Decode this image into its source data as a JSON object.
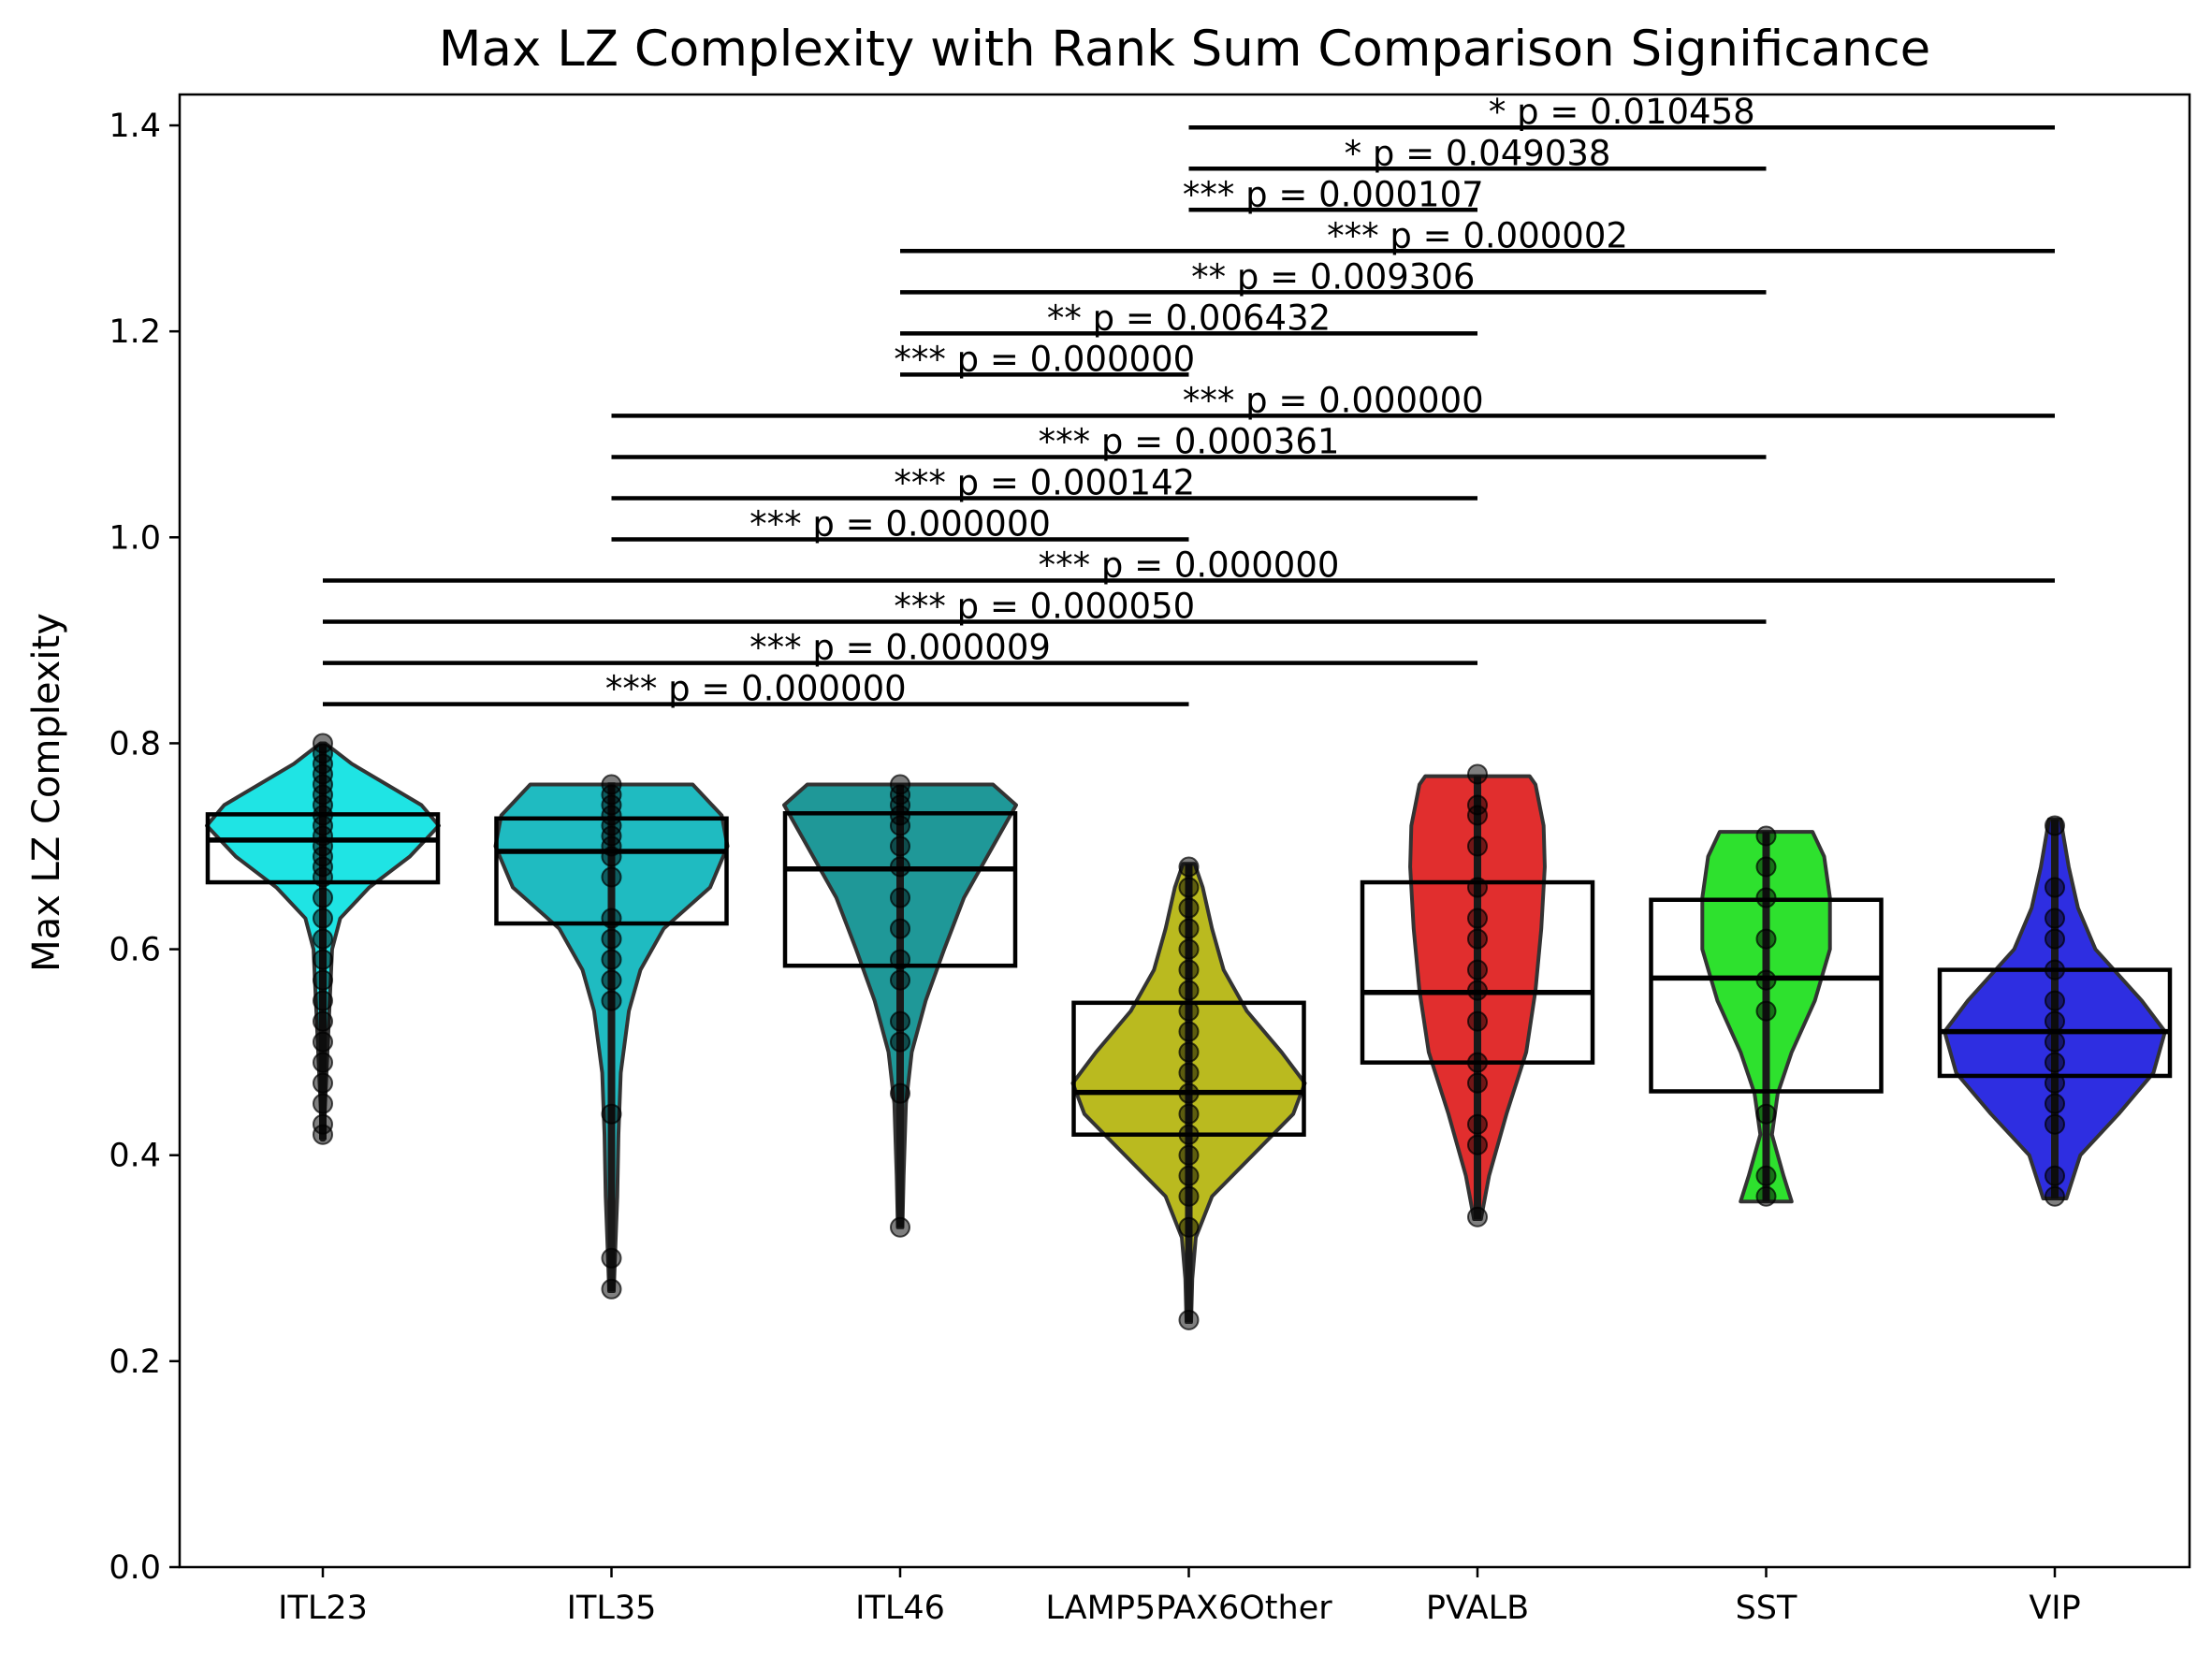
{
  "chart_data": {
    "type": "violin",
    "title": "Max LZ Complexity with Rank Sum Comparison Significance",
    "xlabel": "",
    "ylabel": "Max LZ Complexity",
    "ylim": [
      0.0,
      1.43
    ],
    "yticks": [
      "0.0",
      "0.2",
      "0.4",
      "0.6",
      "0.8",
      "1.0",
      "1.2",
      "1.4"
    ],
    "grid": false,
    "categories": [
      "ITL23",
      "ITL35",
      "ITL46",
      "LAMP5PAX6Other",
      "PVALB",
      "SST",
      "VIP"
    ],
    "groups": [
      {
        "name": "ITL23",
        "color": "#00e0e0",
        "box": {
          "q1": 0.665,
          "median": 0.706,
          "q3": 0.731
        },
        "range": [
          0.415,
          0.8
        ],
        "violin": [
          [
            0.415,
            0.008
          ],
          [
            0.45,
            0.02
          ],
          [
            0.5,
            0.04
          ],
          [
            0.55,
            0.06
          ],
          [
            0.6,
            0.08
          ],
          [
            0.63,
            0.15
          ],
          [
            0.66,
            0.4
          ],
          [
            0.69,
            0.75
          ],
          [
            0.72,
            1.0
          ],
          [
            0.74,
            0.85
          ],
          [
            0.76,
            0.55
          ],
          [
            0.78,
            0.25
          ],
          [
            0.8,
            0.02
          ]
        ],
        "points": [
          0.42,
          0.43,
          0.45,
          0.47,
          0.49,
          0.51,
          0.53,
          0.55,
          0.57,
          0.59,
          0.61,
          0.63,
          0.65,
          0.67,
          0.68,
          0.69,
          0.7,
          0.71,
          0.72,
          0.73,
          0.74,
          0.75,
          0.76,
          0.77,
          0.78,
          0.79,
          0.8
        ]
      },
      {
        "name": "ITL35",
        "color": "#00b2b8",
        "box": {
          "q1": 0.625,
          "median": 0.695,
          "q3": 0.727
        },
        "range": [
          0.268,
          0.762
        ],
        "violin": [
          [
            0.268,
            0.02
          ],
          [
            0.3,
            0.03
          ],
          [
            0.36,
            0.05
          ],
          [
            0.42,
            0.06
          ],
          [
            0.48,
            0.08
          ],
          [
            0.54,
            0.15
          ],
          [
            0.58,
            0.25
          ],
          [
            0.62,
            0.45
          ],
          [
            0.66,
            0.85
          ],
          [
            0.7,
            1.0
          ],
          [
            0.73,
            0.95
          ],
          [
            0.76,
            0.7
          ]
        ],
        "points": [
          0.27,
          0.3,
          0.44,
          0.55,
          0.57,
          0.59,
          0.61,
          0.63,
          0.67,
          0.69,
          0.7,
          0.71,
          0.72,
          0.73,
          0.74,
          0.75,
          0.76
        ]
      },
      {
        "name": "ITL46",
        "color": "#008a8a",
        "box": {
          "q1": 0.584,
          "median": 0.678,
          "q3": 0.732
        },
        "range": [
          0.33,
          0.76
        ],
        "violin": [
          [
            0.33,
            0.02
          ],
          [
            0.38,
            0.03
          ],
          [
            0.45,
            0.05
          ],
          [
            0.5,
            0.1
          ],
          [
            0.55,
            0.22
          ],
          [
            0.6,
            0.38
          ],
          [
            0.65,
            0.55
          ],
          [
            0.7,
            0.8
          ],
          [
            0.74,
            1.0
          ],
          [
            0.76,
            0.8
          ]
        ],
        "points": [
          0.33,
          0.46,
          0.51,
          0.53,
          0.57,
          0.59,
          0.62,
          0.65,
          0.68,
          0.7,
          0.72,
          0.73,
          0.74,
          0.75,
          0.76
        ]
      },
      {
        "name": "LAMP5PAX6Other",
        "color": "#b0b000",
        "box": {
          "q1": 0.42,
          "median": 0.461,
          "q3": 0.548
        },
        "range": [
          0.238,
          0.683
        ],
        "violin": [
          [
            0.238,
            0.02
          ],
          [
            0.28,
            0.03
          ],
          [
            0.32,
            0.06
          ],
          [
            0.36,
            0.2
          ],
          [
            0.4,
            0.55
          ],
          [
            0.44,
            0.9
          ],
          [
            0.47,
            1.0
          ],
          [
            0.5,
            0.8
          ],
          [
            0.54,
            0.5
          ],
          [
            0.58,
            0.3
          ],
          [
            0.62,
            0.2
          ],
          [
            0.66,
            0.12
          ],
          [
            0.683,
            0.05
          ]
        ],
        "points": [
          0.24,
          0.33,
          0.36,
          0.38,
          0.4,
          0.42,
          0.44,
          0.46,
          0.48,
          0.5,
          0.52,
          0.54,
          0.56,
          0.58,
          0.6,
          0.62,
          0.64,
          0.66,
          0.68
        ]
      },
      {
        "name": "PVALB",
        "color": "#dd1111",
        "box": {
          "q1": 0.49,
          "median": 0.558,
          "q3": 0.665
        },
        "range": [
          0.338,
          0.768
        ],
        "violin": [
          [
            0.338,
            0.03
          ],
          [
            0.38,
            0.1
          ],
          [
            0.44,
            0.25
          ],
          [
            0.5,
            0.42
          ],
          [
            0.56,
            0.5
          ],
          [
            0.62,
            0.55
          ],
          [
            0.68,
            0.58
          ],
          [
            0.72,
            0.57
          ],
          [
            0.76,
            0.5
          ],
          [
            0.768,
            0.45
          ]
        ],
        "points": [
          0.34,
          0.41,
          0.43,
          0.47,
          0.49,
          0.53,
          0.56,
          0.58,
          0.61,
          0.63,
          0.66,
          0.7,
          0.73,
          0.74,
          0.77
        ]
      },
      {
        "name": "SST",
        "color": "#11dd11",
        "box": {
          "q1": 0.462,
          "median": 0.572,
          "q3": 0.648
        },
        "range": [
          0.355,
          0.714
        ],
        "violin": [
          [
            0.355,
            0.22
          ],
          [
            0.38,
            0.15
          ],
          [
            0.42,
            0.05
          ],
          [
            0.46,
            0.1
          ],
          [
            0.5,
            0.22
          ],
          [
            0.55,
            0.42
          ],
          [
            0.6,
            0.55
          ],
          [
            0.65,
            0.55
          ],
          [
            0.69,
            0.5
          ],
          [
            0.714,
            0.4
          ]
        ],
        "points": [
          0.36,
          0.38,
          0.44,
          0.54,
          0.57,
          0.61,
          0.65,
          0.68,
          0.71
        ]
      },
      {
        "name": "VIP",
        "color": "#1111dd",
        "box": {
          "q1": 0.477,
          "median": 0.52,
          "q3": 0.58
        },
        "range": [
          0.358,
          0.726
        ],
        "violin": [
          [
            0.358,
            0.1
          ],
          [
            0.4,
            0.22
          ],
          [
            0.44,
            0.55
          ],
          [
            0.48,
            0.85
          ],
          [
            0.52,
            0.95
          ],
          [
            0.55,
            0.75
          ],
          [
            0.6,
            0.35
          ],
          [
            0.64,
            0.2
          ],
          [
            0.68,
            0.12
          ],
          [
            0.726,
            0.05
          ]
        ],
        "points": [
          0.36,
          0.38,
          0.43,
          0.45,
          0.47,
          0.49,
          0.51,
          0.53,
          0.55,
          0.58,
          0.61,
          0.63,
          0.66,
          0.72
        ]
      }
    ],
    "comparisons": [
      {
        "from": 0,
        "to": 3,
        "y": 0.838,
        "label": "*** p = 0.000000"
      },
      {
        "from": 0,
        "to": 4,
        "y": 0.878,
        "label": "*** p = 0.000009"
      },
      {
        "from": 0,
        "to": 5,
        "y": 0.918,
        "label": "*** p = 0.000050"
      },
      {
        "from": 0,
        "to": 6,
        "y": 0.958,
        "label": "*** p = 0.000000"
      },
      {
        "from": 1,
        "to": 3,
        "y": 0.998,
        "label": "*** p = 0.000000"
      },
      {
        "from": 1,
        "to": 4,
        "y": 1.038,
        "label": "*** p = 0.000142"
      },
      {
        "from": 1,
        "to": 5,
        "y": 1.078,
        "label": "*** p = 0.000361"
      },
      {
        "from": 1,
        "to": 6,
        "y": 1.118,
        "label": "*** p = 0.000000"
      },
      {
        "from": 2,
        "to": 3,
        "y": 1.158,
        "label": "*** p = 0.000000"
      },
      {
        "from": 2,
        "to": 4,
        "y": 1.198,
        "label": "** p = 0.006432"
      },
      {
        "from": 2,
        "to": 5,
        "y": 1.238,
        "label": "** p = 0.009306"
      },
      {
        "from": 2,
        "to": 6,
        "y": 1.278,
        "label": "*** p = 0.000002"
      },
      {
        "from": 3,
        "to": 4,
        "y": 1.318,
        "label": "*** p = 0.000107"
      },
      {
        "from": 3,
        "to": 5,
        "y": 1.358,
        "label": "* p = 0.049038"
      },
      {
        "from": 3,
        "to": 6,
        "y": 1.398,
        "label": "* p = 0.010458"
      }
    ]
  }
}
